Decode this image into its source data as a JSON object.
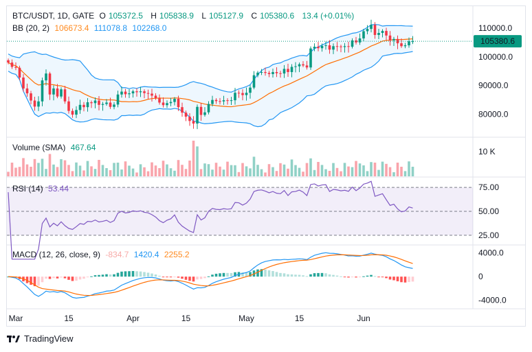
{
  "header": {
    "symbol": "BTC/USDT, 1D, GATE",
    "open_label": "O",
    "open": "105372.5",
    "high_label": "H",
    "high": "105838.9",
    "low_label": "L",
    "low": "105127.9",
    "close_label": "C",
    "close": "105380.6",
    "change": "13.4 (+0.01%)"
  },
  "bb": {
    "label": "BB (20, 2)",
    "basis": "106673.4",
    "upper": "111078.8",
    "lower": "102268.0"
  },
  "volume": {
    "label": "Volume (SMA)",
    "value": "467.64"
  },
  "rsi": {
    "label": "RSI (14)",
    "value": "53.44"
  },
  "macd": {
    "label": "MACD (12, 26, close, 9)",
    "hist": "-834.7",
    "macd": "1420.4",
    "signal": "2255.2"
  },
  "price_axis": [
    "110000.0",
    "100000.0",
    "90000.0",
    "80000.0"
  ],
  "price_tag": "105380.6",
  "volume_axis": [
    "10 K"
  ],
  "rsi_axis": [
    "75.00",
    "50.00",
    "25.00"
  ],
  "macd_axis": [
    "4000.0",
    "0",
    "-4000.0"
  ],
  "time_axis": [
    "Mar",
    "15",
    "Apr",
    "15",
    "May",
    "15",
    "Jun"
  ],
  "footer": {
    "brand": "TradingView"
  },
  "colors": {
    "up": "#089981",
    "down": "#f23645",
    "basis": "#ff6d00",
    "band": "#2196f3",
    "rsi": "#7e57c2",
    "macd": "#2196f3",
    "signal": "#ff6d00"
  },
  "chart_data": {
    "type": "candlestick",
    "title": "BTC/USDT, 1D, GATE",
    "closes": [
      98000,
      96500,
      96200,
      92800,
      89000,
      87300,
      84800,
      82700,
      84500,
      91800,
      94200,
      86900,
      89000,
      86200,
      88700,
      84500,
      81200,
      79900,
      81500,
      83300,
      82500,
      84200,
      83900,
      84800,
      83300,
      83600,
      84100,
      82600,
      83400,
      86900,
      87900,
      87000,
      87300,
      88000,
      87700,
      88000,
      87400,
      87200,
      86500,
      85600,
      84100,
      83200,
      83900,
      84300,
      85400,
      82500,
      80600,
      79200,
      77700,
      76800,
      82600,
      79800,
      80700,
      83600,
      85000,
      84600,
      84500,
      84900,
      84700,
      84900,
      87500,
      87400,
      86700,
      87500,
      89300,
      93600,
      94500,
      94700,
      94400,
      94000,
      94700,
      94300,
      94200,
      95800,
      94700,
      96500,
      96700,
      97400,
      97000,
      96300,
      102900,
      103500,
      103000,
      103800,
      104000,
      102500,
      103700,
      103600,
      103400,
      103700,
      103500,
      105700,
      105000,
      106400,
      108900,
      109700,
      111100,
      107600,
      108300,
      109000,
      107400,
      105700,
      106200,
      104700,
      103700,
      104000,
      105400,
      105400
    ],
    "bb_basis_last": 106673.4,
    "bb_upper_last": 111078.8,
    "bb_lower_last": 102268.0,
    "volume_sma_last": 467.64,
    "rsi_last": 53.44,
    "rsi_levels": [
      75,
      50,
      25
    ],
    "macd_last": {
      "histogram": -834.7,
      "macd": 1420.4,
      "signal": 2255.2
    },
    "price_range": [
      73000,
      114500
    ],
    "rsi_range": [
      17,
      83
    ],
    "macd_range": [
      -5200,
      5000
    ]
  }
}
